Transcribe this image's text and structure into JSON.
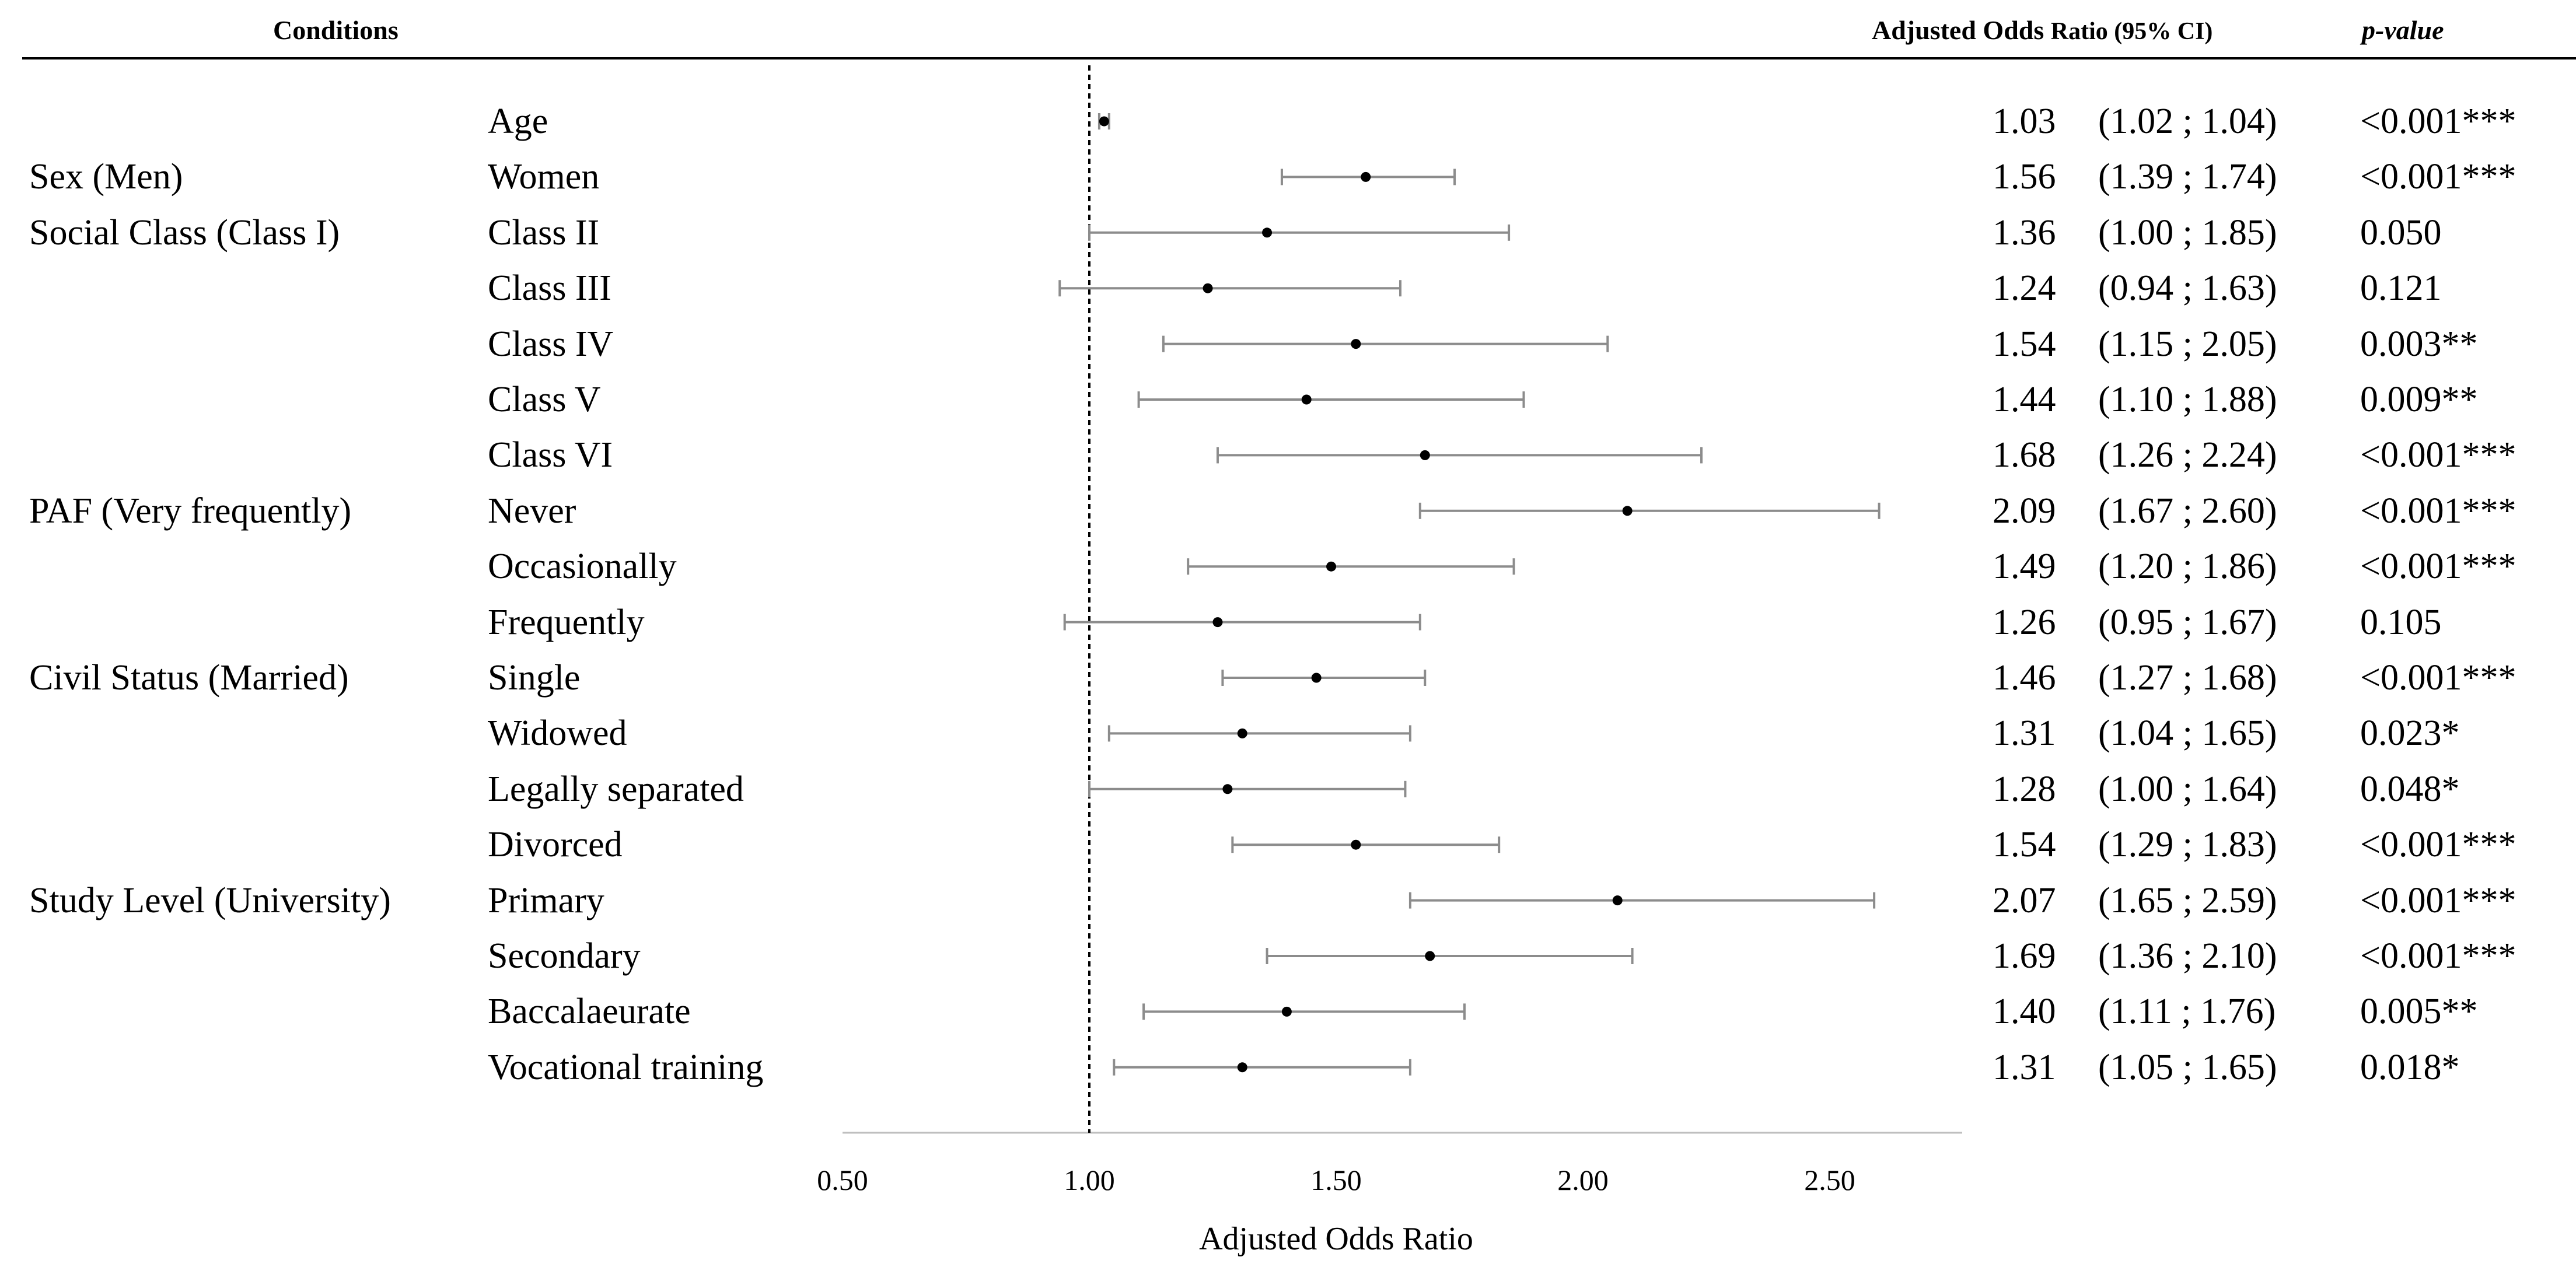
{
  "headers": {
    "conditions": "Conditions",
    "or": "Adjusted Odds",
    "or_ratio": "Ratio (95% CI)",
    "p": "p-value"
  },
  "rows": [
    {
      "group": "",
      "label": "Age",
      "or": "1.03",
      "ci": "(1.02 ; 1.04)",
      "p": "<0.001***"
    },
    {
      "group": "Sex (Men)",
      "label": "Women",
      "or": "1.56",
      "ci": "(1.39 ; 1.74)",
      "p": "<0.001***"
    },
    {
      "group": "Social Class (Class I)",
      "label": "Class II",
      "or": "1.36",
      "ci": "(1.00 ; 1.85)",
      "p": "0.050"
    },
    {
      "group": "",
      "label": "Class III",
      "or": "1.24",
      "ci": "(0.94 ; 1.63)",
      "p": "0.121"
    },
    {
      "group": "",
      "label": "Class IV",
      "or": "1.54",
      "ci": "(1.15 ; 2.05)",
      "p": "0.003**"
    },
    {
      "group": "",
      "label": "Class V",
      "or": "1.44",
      "ci": "(1.10 ; 1.88)",
      "p": "0.009**"
    },
    {
      "group": "",
      "label": "Class VI",
      "or": "1.68",
      "ci": "(1.26 ; 2.24)",
      "p": "<0.001***"
    },
    {
      "group": "PAF (Very frequently)",
      "label": "Never",
      "or": "2.09",
      "ci": "(1.67 ; 2.60)",
      "p": "<0.001***"
    },
    {
      "group": "",
      "label": "Occasionally",
      "or": "1.49",
      "ci": "(1.20 ; 1.86)",
      "p": "<0.001***"
    },
    {
      "group": "",
      "label": "Frequently",
      "or": "1.26",
      "ci": "(0.95 ; 1.67)",
      "p": "0.105"
    },
    {
      "group": "Civil Status (Married)",
      "label": "Single",
      "or": "1.46",
      "ci": "(1.27 ; 1.68)",
      "p": "<0.001***"
    },
    {
      "group": "",
      "label": "Widowed",
      "or": "1.31",
      "ci": "(1.04 ; 1.65)",
      "p": "0.023*"
    },
    {
      "group": "",
      "label": "Legally separated",
      "or": "1.28",
      "ci": "(1.00 ; 1.64)",
      "p": "0.048*"
    },
    {
      "group": "",
      "label": "Divorced",
      "or": "1.54",
      "ci": "(1.29 ; 1.83)",
      "p": "<0.001***"
    },
    {
      "group": "Study Level (University)",
      "label": "Primary",
      "or": "2.07",
      "ci": "(1.65 ; 2.59)",
      "p": "<0.001***"
    },
    {
      "group": "",
      "label": "Secondary",
      "or": "1.69",
      "ci": "(1.36 ; 2.10)",
      "p": "<0.001***"
    },
    {
      "group": "",
      "label": "Baccalaeurate",
      "or": "1.40",
      "ci": "(1.11 ; 1.76)",
      "p": "0.005**"
    },
    {
      "group": "",
      "label": "Vocational training",
      "or": "1.31",
      "ci": "(1.05 ; 1.65)",
      "p": "0.018*"
    }
  ],
  "chart_data": {
    "type": "forest",
    "xlabel": "Adjusted Odds Ratio",
    "xlim": [
      0.5,
      2.75
    ],
    "xticks": [
      0.5,
      1.0,
      1.5,
      2.0,
      2.5
    ],
    "xtick_labels": [
      "0.50",
      "1.00",
      "1.50",
      "2.00",
      "2.50"
    ],
    "reference_line": 1.0,
    "categories": [
      "Age",
      "Women",
      "Class II",
      "Class III",
      "Class IV",
      "Class V",
      "Class VI",
      "Never",
      "Occasionally",
      "Frequently",
      "Single",
      "Widowed",
      "Legally separated",
      "Divorced",
      "Primary",
      "Secondary",
      "Baccalaeurate",
      "Vocational training"
    ],
    "estimates": [
      1.03,
      1.56,
      1.36,
      1.24,
      1.54,
      1.44,
      1.68,
      2.09,
      1.49,
      1.26,
      1.46,
      1.31,
      1.28,
      1.54,
      2.07,
      1.69,
      1.4,
      1.31
    ],
    "lower": [
      1.02,
      1.39,
      1.0,
      0.94,
      1.15,
      1.1,
      1.26,
      1.67,
      1.2,
      0.95,
      1.27,
      1.04,
      1.0,
      1.29,
      1.65,
      1.36,
      1.11,
      1.05
    ],
    "upper": [
      1.04,
      1.74,
      1.85,
      1.63,
      2.05,
      1.88,
      2.24,
      2.6,
      1.86,
      1.67,
      1.68,
      1.65,
      1.64,
      1.83,
      2.59,
      2.1,
      1.76,
      1.65
    ],
    "colors": {
      "marker": "#000000",
      "whisker": "#8c8c8c",
      "reference": "#000000",
      "axis": "#bfbfbf"
    }
  }
}
